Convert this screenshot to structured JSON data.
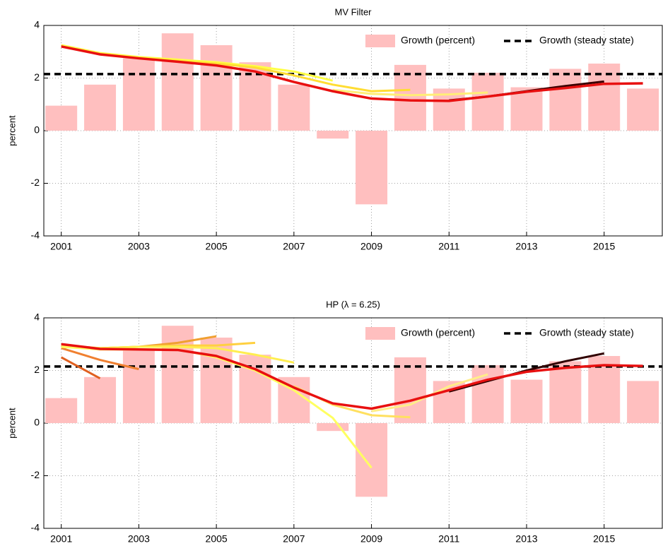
{
  "chart_data": [
    {
      "type": "bar",
      "title": "MV Filter",
      "y_label": "percent",
      "xlim": [
        2000.55,
        2016.5
      ],
      "xticks": [
        2001,
        2003,
        2005,
        2007,
        2009,
        2011,
        2013,
        2015
      ],
      "ylim": [
        -4,
        4
      ],
      "yticks": [
        -4,
        -2,
        0,
        2,
        4
      ],
      "grid": true,
      "legend": "upper right",
      "series": [
        {
          "name": "Growth (percent)",
          "color": "#ffbfbf",
          "x": [
            2001,
            2002,
            2003,
            2004,
            2005,
            2006,
            2007,
            2008,
            2009,
            2010,
            2011,
            2012,
            2013,
            2014,
            2015,
            2016
          ],
          "values": [
            0.95,
            1.75,
            2.75,
            3.7,
            3.25,
            2.6,
            1.75,
            -0.3,
            -2.8,
            2.5,
            1.6,
            2.2,
            1.65,
            2.35,
            2.55,
            1.6
          ]
        },
        {
          "name": "Growth (steady state)",
          "color": "#000000",
          "value": 2.15
        }
      ],
      "lines": [
        {
          "color": "#ffff44",
          "x": [
            2001,
            2002,
            2003,
            2004,
            2005,
            2006,
            2007,
            2008
          ],
          "values": [
            3.25,
            2.95,
            2.8,
            2.7,
            2.6,
            2.45,
            2.25,
            1.9
          ]
        },
        {
          "color": "#ffdd33",
          "x": [
            2001,
            2002,
            2003,
            2004,
            2005,
            2006,
            2007,
            2008,
            2009,
            2010
          ],
          "values": [
            3.2,
            2.92,
            2.76,
            2.65,
            2.55,
            2.4,
            2.1,
            1.75,
            1.5,
            1.55
          ]
        },
        {
          "color": "#ffee77",
          "x": [
            2008,
            2009,
            2010,
            2011,
            2012
          ],
          "values": [
            1.55,
            1.4,
            1.35,
            1.38,
            1.45
          ]
        },
        {
          "color": "#3a0000",
          "x": [
            2011,
            2012,
            2013,
            2014,
            2015
          ],
          "values": [
            1.15,
            1.3,
            1.5,
            1.7,
            1.87
          ]
        },
        {
          "color": "#e81010",
          "x": [
            2001,
            2002,
            2003,
            2004,
            2005,
            2006,
            2007,
            2008,
            2009,
            2010,
            2011,
            2012,
            2013,
            2014,
            2015,
            2016
          ],
          "values": [
            3.2,
            2.9,
            2.75,
            2.62,
            2.48,
            2.25,
            1.85,
            1.5,
            1.22,
            1.15,
            1.13,
            1.3,
            1.48,
            1.62,
            1.78,
            1.8
          ]
        }
      ]
    },
    {
      "type": "bar",
      "title": "HP (λ = 6.25)",
      "y_label": "percent",
      "xlim": [
        2000.55,
        2016.5
      ],
      "xticks": [
        2001,
        2003,
        2005,
        2007,
        2009,
        2011,
        2013,
        2015
      ],
      "ylim": [
        -4,
        4
      ],
      "yticks": [
        -4,
        -2,
        0,
        2,
        4
      ],
      "grid": true,
      "legend": "upper right",
      "series": [
        {
          "name": "Growth (percent)",
          "color": "#ffbfbf",
          "x": [
            2001,
            2002,
            2003,
            2004,
            2005,
            2006,
            2007,
            2008,
            2009,
            2010,
            2011,
            2012,
            2013,
            2014,
            2015,
            2016
          ],
          "values": [
            0.95,
            1.75,
            2.75,
            3.7,
            3.25,
            2.6,
            1.75,
            -0.3,
            -2.8,
            2.5,
            1.6,
            2.2,
            1.65,
            2.35,
            2.55,
            1.6
          ]
        },
        {
          "name": "Growth (steady state)",
          "color": "#000000",
          "value": 2.15
        }
      ],
      "lines": [
        {
          "color": "#e06020",
          "x": [
            2001,
            2002
          ],
          "values": [
            2.5,
            1.7
          ]
        },
        {
          "color": "#f08030",
          "x": [
            2001,
            2002,
            2003
          ],
          "values": [
            2.85,
            2.4,
            2.05
          ]
        },
        {
          "color": "#f0a030",
          "x": [
            2001,
            2002,
            2003,
            2004,
            2005
          ],
          "values": [
            2.9,
            2.85,
            2.9,
            3.05,
            3.3
          ]
        },
        {
          "color": "#ffd040",
          "x": [
            2001,
            2002,
            2003,
            2004,
            2005,
            2006
          ],
          "values": [
            2.95,
            2.85,
            2.9,
            2.95,
            2.95,
            3.05
          ]
        },
        {
          "color": "#ffee50",
          "x": [
            2001,
            2002,
            2003,
            2004,
            2005,
            2006,
            2007
          ],
          "values": [
            2.95,
            2.85,
            2.9,
            2.9,
            2.85,
            2.6,
            2.3
          ]
        },
        {
          "color": "#ffff60",
          "x": [
            2001,
            2002,
            2003,
            2004,
            2005,
            2006,
            2007,
            2008,
            2009
          ],
          "values": [
            2.9,
            2.8,
            2.8,
            2.8,
            2.5,
            2.0,
            1.25,
            0.2,
            -1.7
          ]
        },
        {
          "color": "#ffe060",
          "x": [
            2007,
            2008,
            2009,
            2010
          ],
          "values": [
            1.4,
            0.7,
            0.3,
            0.22
          ]
        },
        {
          "color": "#ffee88",
          "x": [
            2009,
            2010,
            2011,
            2012
          ],
          "values": [
            0.45,
            0.7,
            1.4,
            1.85
          ]
        },
        {
          "color": "#300000",
          "x": [
            2011,
            2012,
            2013,
            2014,
            2015
          ],
          "values": [
            1.2,
            1.6,
            2.0,
            2.35,
            2.65
          ]
        },
        {
          "color": "#e81010",
          "x": [
            2001,
            2002,
            2003,
            2004,
            2005,
            2006,
            2007,
            2008,
            2009,
            2010,
            2011,
            2012,
            2013,
            2014,
            2015,
            2016
          ],
          "values": [
            3.0,
            2.82,
            2.8,
            2.78,
            2.55,
            2.05,
            1.35,
            0.75,
            0.55,
            0.85,
            1.25,
            1.65,
            1.95,
            2.1,
            2.2,
            2.17
          ]
        }
      ]
    }
  ]
}
